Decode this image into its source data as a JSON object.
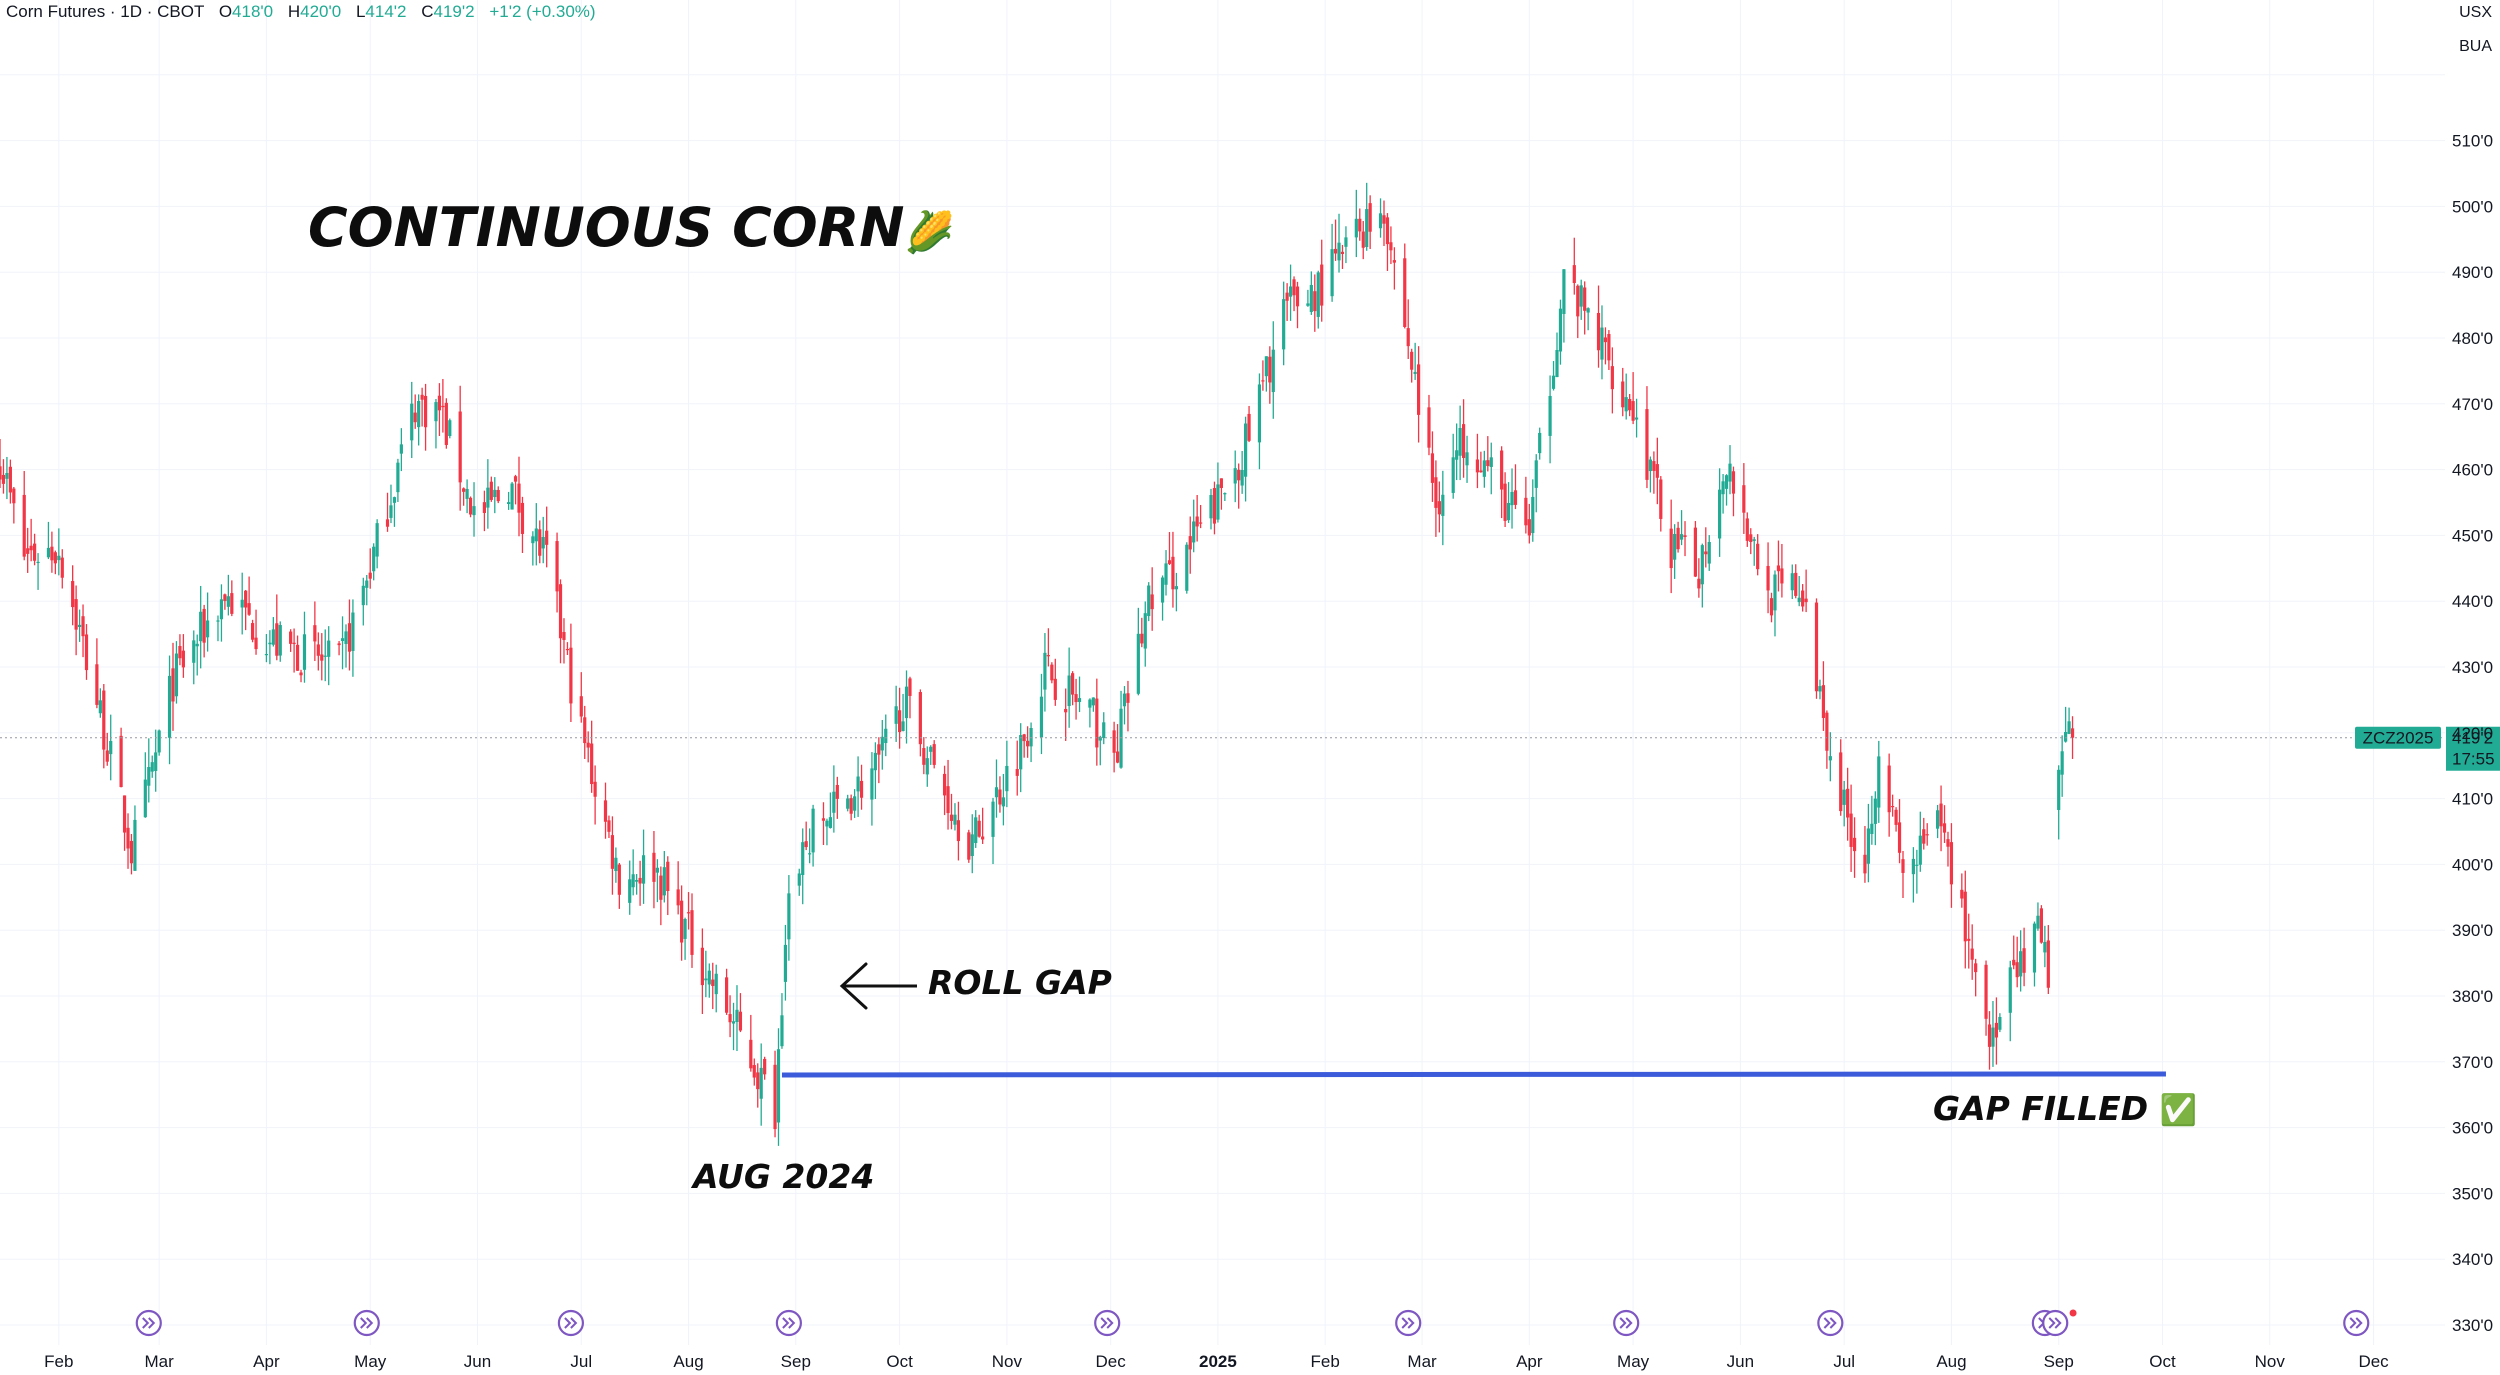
{
  "header": {
    "symbol_desc": "Corn Futures · 1D · CBOT",
    "open_label": "O",
    "open": "418'0",
    "high_label": "H",
    "high": "420'0",
    "low_label": "L",
    "low": "414'2",
    "close_label": "C",
    "close": "419'2",
    "change": "+1'2 (+0.30%)"
  },
  "currency": {
    "line1": "USX",
    "line2": "BUA"
  },
  "price_tag": {
    "symbol": "ZCZ2025",
    "price": "419'2",
    "countdown": "17:55"
  },
  "annotations": {
    "title": "CONTINUOUS CORN",
    "title_emoji": "🌽",
    "roll_gap": "ROLL GAP",
    "aug_2024": "AUG 2024",
    "gap_filled": "GAP FILLED",
    "gap_filled_emoji": "✅"
  },
  "colors": {
    "up": "#22ab94",
    "down": "#f23645",
    "line": "#3b5bdb",
    "grid": "#f0f3fa",
    "tag_bg": "#22ab94",
    "event_icon": "#7e57c2"
  },
  "chart_data": {
    "type": "candlestick",
    "timeframe": "1D",
    "ylim": [
      330,
      524
    ],
    "y_ticks": [
      330,
      340,
      350,
      360,
      370,
      380,
      390,
      400,
      410,
      420,
      430,
      440,
      450,
      460,
      470,
      480,
      490,
      500,
      510
    ],
    "y_tick_labels": [
      "330'0",
      "340'0",
      "350'0",
      "360'0",
      "370'0",
      "380'0",
      "390'0",
      "400'0",
      "410'0",
      "420'0",
      "430'0",
      "440'0",
      "450'0",
      "460'0",
      "470'0",
      "480'0",
      "490'0",
      "500'0",
      "510'0"
    ],
    "x_range": [
      "2024-01-15",
      "2025-12-15"
    ],
    "x_ticks": [
      {
        "date": "2024-02-01",
        "label": "Feb"
      },
      {
        "date": "2024-03-01",
        "label": "Mar"
      },
      {
        "date": "2024-04-01",
        "label": "Apr"
      },
      {
        "date": "2024-05-01",
        "label": "May"
      },
      {
        "date": "2024-06-01",
        "label": "Jun"
      },
      {
        "date": "2024-07-01",
        "label": "Jul"
      },
      {
        "date": "2024-08-01",
        "label": "Aug"
      },
      {
        "date": "2024-09-01",
        "label": "Sep"
      },
      {
        "date": "2024-10-01",
        "label": "Oct"
      },
      {
        "date": "2024-11-01",
        "label": "Nov"
      },
      {
        "date": "2024-12-01",
        "label": "Dec"
      },
      {
        "date": "2025-01-01",
        "label": "2025"
      },
      {
        "date": "2025-02-01",
        "label": "Feb"
      },
      {
        "date": "2025-03-01",
        "label": "Mar"
      },
      {
        "date": "2025-04-01",
        "label": "Apr"
      },
      {
        "date": "2025-05-01",
        "label": "May"
      },
      {
        "date": "2025-06-01",
        "label": "Jun"
      },
      {
        "date": "2025-07-01",
        "label": "Jul"
      },
      {
        "date": "2025-08-01",
        "label": "Aug"
      },
      {
        "date": "2025-09-01",
        "label": "Sep"
      },
      {
        "date": "2025-10-01",
        "label": "Oct"
      },
      {
        "date": "2025-11-01",
        "label": "Nov"
      },
      {
        "date": "2025-12-01",
        "label": "Dec"
      }
    ],
    "key_closes": [
      {
        "date": "2024-01-15",
        "close": 462
      },
      {
        "date": "2024-01-22",
        "close": 447
      },
      {
        "date": "2024-02-01",
        "close": 448
      },
      {
        "date": "2024-02-12",
        "close": 425
      },
      {
        "date": "2024-02-22",
        "close": 402
      },
      {
        "date": "2024-02-27",
        "close": 412
      },
      {
        "date": "2024-03-05",
        "close": 428
      },
      {
        "date": "2024-03-20",
        "close": 441
      },
      {
        "date": "2024-04-02",
        "close": 434
      },
      {
        "date": "2024-04-22",
        "close": 430
      },
      {
        "date": "2024-05-02",
        "close": 447
      },
      {
        "date": "2024-05-14",
        "close": 470
      },
      {
        "date": "2024-05-21",
        "close": 469
      },
      {
        "date": "2024-06-01",
        "close": 452
      },
      {
        "date": "2024-06-10",
        "close": 458
      },
      {
        "date": "2024-06-21",
        "close": 446
      },
      {
        "date": "2024-07-01",
        "close": 420
      },
      {
        "date": "2024-07-12",
        "close": 398
      },
      {
        "date": "2024-07-22",
        "close": 400
      },
      {
        "date": "2024-08-05",
        "close": 385
      },
      {
        "date": "2024-08-12",
        "close": 378
      },
      {
        "date": "2024-08-26",
        "close": 363
      },
      {
        "date": "2024-08-30",
        "close": 398
      },
      {
        "date": "2024-09-06",
        "close": 405
      },
      {
        "date": "2024-09-25",
        "close": 415
      },
      {
        "date": "2024-10-02",
        "close": 425
      },
      {
        "date": "2024-10-15",
        "close": 410
      },
      {
        "date": "2024-10-22",
        "close": 403
      },
      {
        "date": "2024-11-05",
        "close": 418
      },
      {
        "date": "2024-11-12",
        "close": 430
      },
      {
        "date": "2024-11-26",
        "close": 422
      },
      {
        "date": "2024-12-02",
        "close": 416
      },
      {
        "date": "2024-12-12",
        "close": 440
      },
      {
        "date": "2024-12-20",
        "close": 445
      },
      {
        "date": "2025-01-02",
        "close": 456
      },
      {
        "date": "2025-01-10",
        "close": 465
      },
      {
        "date": "2025-01-20",
        "close": 484
      },
      {
        "date": "2025-01-31",
        "close": 488
      },
      {
        "date": "2025-02-10",
        "close": 496
      },
      {
        "date": "2025-02-18",
        "close": 500
      },
      {
        "date": "2025-02-27",
        "close": 473
      },
      {
        "date": "2025-03-05",
        "close": 455
      },
      {
        "date": "2025-03-14",
        "close": 466
      },
      {
        "date": "2025-03-25",
        "close": 455
      },
      {
        "date": "2025-04-01",
        "close": 451
      },
      {
        "date": "2025-04-11",
        "close": 489
      },
      {
        "date": "2025-04-21",
        "close": 480
      },
      {
        "date": "2025-05-01",
        "close": 469
      },
      {
        "date": "2025-05-12",
        "close": 448
      },
      {
        "date": "2025-05-20",
        "close": 445
      },
      {
        "date": "2025-05-28",
        "close": 462
      },
      {
        "date": "2025-06-09",
        "close": 441
      },
      {
        "date": "2025-06-18",
        "close": 442
      },
      {
        "date": "2025-06-30",
        "close": 410
      },
      {
        "date": "2025-07-07",
        "close": 400
      },
      {
        "date": "2025-07-11",
        "close": 418
      },
      {
        "date": "2025-07-18",
        "close": 398
      },
      {
        "date": "2025-07-29",
        "close": 406
      },
      {
        "date": "2025-08-08",
        "close": 384
      },
      {
        "date": "2025-08-13",
        "close": 373
      },
      {
        "date": "2025-08-18",
        "close": 381
      },
      {
        "date": "2025-08-26",
        "close": 389
      },
      {
        "date": "2025-08-29",
        "close": 384
      },
      {
        "date": "2025-09-01",
        "close": 413
      },
      {
        "date": "2025-09-04",
        "close": 421
      },
      {
        "date": "2025-09-05",
        "close": 419.25
      }
    ],
    "gap_line": {
      "start": "2024-08-28",
      "end": "2025-10-02",
      "price": 368
    },
    "last_price": 419.25,
    "event_dates": [
      "2024-02-27",
      "2024-04-30",
      "2024-06-28",
      "2024-08-30",
      "2024-11-30",
      "2025-02-25",
      "2025-04-29",
      "2025-06-27",
      "2025-08-28",
      "2025-08-31",
      "2025-11-26"
    ]
  }
}
